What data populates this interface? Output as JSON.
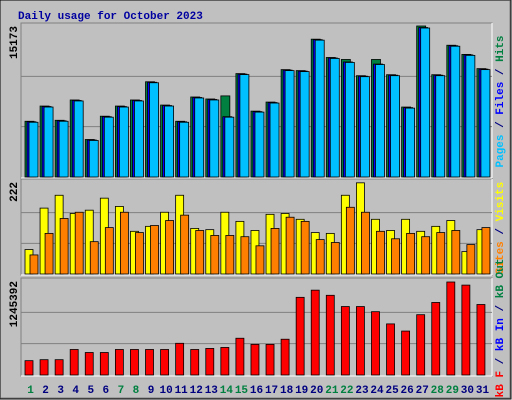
{
  "title": "Daily usage for October 2023",
  "categories": [
    "1",
    "2",
    "3",
    "4",
    "5",
    "6",
    "7",
    "8",
    "9",
    "10",
    "11",
    "12",
    "13",
    "14",
    "15",
    "16",
    "17",
    "18",
    "19",
    "20",
    "21",
    "22",
    "23",
    "24",
    "25",
    "26",
    "27",
    "28",
    "29",
    "30",
    "31"
  ],
  "category_colors": [
    "#008040",
    "#000080",
    "#000080",
    "#000080",
    "#000080",
    "#000080",
    "#008040",
    "#008040",
    "#000080",
    "#000080",
    "#000080",
    "#000080",
    "#000080",
    "#008040",
    "#008040",
    "#000080",
    "#000080",
    "#000080",
    "#000080",
    "#000080",
    "#008040",
    "#008040",
    "#000080",
    "#000080",
    "#000080",
    "#000080",
    "#000080",
    "#008040",
    "#008040",
    "#000080",
    "#000080"
  ],
  "chart_data": [
    {
      "type": "bar",
      "ylim": [
        0,
        15173
      ],
      "yticks": [
        15173
      ],
      "series": [
        {
          "name": "Pages",
          "color": "#00c0ff",
          "values": [
            5500,
            7030,
            5600,
            7640,
            3670,
            6010,
            7030,
            7640,
            9470,
            7130,
            5500,
            7940,
            7740,
            6010,
            10290,
            6520,
            7430,
            10690,
            10590,
            13750,
            11910,
            11510,
            10080,
            11300,
            10180,
            6920,
            14970,
            10180,
            13140,
            12220,
            10790
          ]
        },
        {
          "name": "Files",
          "color": "#0000ff",
          "values": [
            5550,
            7080,
            5650,
            7690,
            3720,
            6060,
            7080,
            7690,
            9520,
            7180,
            5550,
            7990,
            7790,
            6060,
            10340,
            6570,
            7480,
            10740,
            10640,
            13800,
            11960,
            11560,
            10130,
            11350,
            10230,
            6970,
            15020,
            10230,
            13190,
            12270,
            10840
          ]
        },
        {
          "name": "Hits",
          "color": "#008040",
          "values": [
            5600,
            7130,
            5700,
            7740,
            3770,
            6110,
            7130,
            7740,
            9570,
            7230,
            5600,
            8040,
            7840,
            8150,
            10390,
            6620,
            7530,
            10790,
            10690,
            13850,
            12010,
            11810,
            10180,
            11810,
            10280,
            7030,
            15173,
            10280,
            13240,
            12320,
            10890
          ]
        }
      ]
    },
    {
      "type": "bar",
      "ylim": [
        0,
        222
      ],
      "yticks": [
        222
      ],
      "series": [
        {
          "name": "Sites",
          "color": "#ff8000",
          "values": [
            46,
            98,
            134,
            149,
            78,
            112,
            149,
            100,
            117,
            129,
            142,
            105,
            93,
            93,
            90,
            68,
            110,
            137,
            127,
            83,
            76,
            161,
            149,
            103,
            85,
            98,
            90,
            100,
            105,
            71,
            112
          ]
        },
        {
          "name": "Visits",
          "color": "#ffff00",
          "values": [
            59,
            159,
            190,
            146,
            154,
            183,
            163,
            103,
            115,
            149,
            190,
            110,
            107,
            149,
            127,
            105,
            144,
            146,
            132,
            100,
            98,
            190,
            220,
            132,
            105,
            132,
            103,
            115,
            129,
            54,
            107
          ]
        }
      ]
    },
    {
      "type": "bar",
      "ylim": [
        0,
        1245392
      ],
      "yticks": [
        1245392
      ],
      "series": [
        {
          "name": "kB F",
          "color": "#ff0000",
          "values": [
            190000,
            203000,
            203000,
            338000,
            298000,
            298000,
            338000,
            338000,
            338000,
            338000,
            420000,
            338000,
            352000,
            365000,
            487000,
            406000,
            406000,
            474000,
            1029000,
            1124000,
            1056000,
            907000,
            907000,
            839000,
            677000,
            582000,
            799000,
            961000,
            1232000,
            1191000,
            934000
          ]
        },
        {
          "name": "kB In",
          "color": "#0000ff",
          "values": [
            0,
            0,
            0,
            0,
            0,
            0,
            0,
            0,
            0,
            0,
            0,
            0,
            0,
            0,
            0,
            0,
            0,
            0,
            0,
            0,
            0,
            0,
            0,
            0,
            0,
            0,
            0,
            0,
            0,
            0,
            0
          ]
        },
        {
          "name": "kB Out",
          "color": "#008040",
          "values": [
            0,
            0,
            0,
            0,
            0,
            0,
            0,
            0,
            0,
            0,
            0,
            0,
            0,
            0,
            0,
            0,
            0,
            0,
            0,
            0,
            0,
            0,
            0,
            0,
            0,
            0,
            0,
            0,
            0,
            0,
            0
          ]
        }
      ]
    }
  ]
}
